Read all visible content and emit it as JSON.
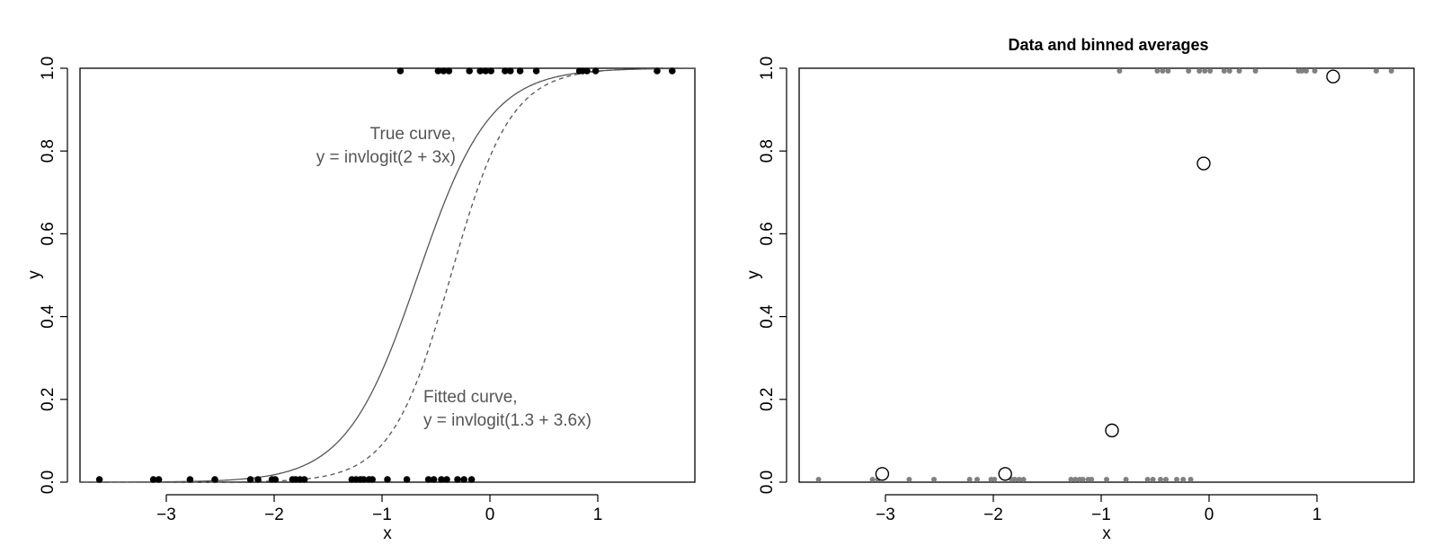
{
  "chart_data": [
    {
      "type": "scatter",
      "title": "",
      "xlabel": "x",
      "ylabel": "y",
      "xlim": [
        -3.8,
        1.9
      ],
      "ylim": [
        0,
        1
      ],
      "xticks": [
        -3,
        -2,
        -1,
        0,
        1
      ],
      "yticks": [
        0.0,
        0.2,
        0.4,
        0.6,
        0.8,
        1.0
      ],
      "xtick_labels": [
        "−3",
        "−2",
        "−1",
        "0",
        "1"
      ],
      "ytick_labels": [
        "0.0",
        "0.2",
        "0.4",
        "0.6",
        "0.8",
        "1.0"
      ],
      "grid": false,
      "points_color": "#000000",
      "points": {
        "x0": [
          -3.62,
          -3.12,
          -3.07,
          -2.78,
          -2.55,
          -2.22,
          -2.15,
          -2.02,
          -1.99,
          -1.83,
          -1.8,
          -1.76,
          -1.72,
          -1.28,
          -1.24,
          -1.2,
          -1.17,
          -1.12,
          -1.09,
          -0.95,
          -0.77,
          -0.57,
          -0.52,
          -0.45,
          -0.4,
          -0.3,
          -0.24,
          -0.17
        ],
        "x1": [
          -0.83,
          -0.48,
          -0.43,
          -0.38,
          -0.19,
          -0.09,
          -0.04,
          0.01,
          0.14,
          0.19,
          0.28,
          0.43,
          0.83,
          0.86,
          0.9,
          0.98,
          1.55,
          1.69
        ]
      },
      "curves": [
        {
          "label_lines": [
            "True curve,",
            "y = invlogit(2 + 3x)"
          ],
          "a": 2,
          "b": 3,
          "dash": "solid"
        },
        {
          "label_lines": [
            "Fitted curve,",
            "y = invlogit(1.3 + 3.6x)"
          ],
          "a": 1.3,
          "b": 3.6,
          "dash": "dashed"
        }
      ],
      "curve_color": "#555555",
      "annotation_color": "#555555"
    },
    {
      "type": "scatter",
      "title": "Data and binned averages",
      "xlabel": "x",
      "ylabel": "y",
      "xlim": [
        -3.8,
        1.9
      ],
      "ylim": [
        0,
        1
      ],
      "xticks": [
        -3,
        -2,
        -1,
        0,
        1
      ],
      "yticks": [
        0.0,
        0.2,
        0.4,
        0.6,
        0.8,
        1.0
      ],
      "xtick_labels": [
        "−3",
        "−2",
        "−1",
        "0",
        "1"
      ],
      "ytick_labels": [
        "0.0",
        "0.2",
        "0.4",
        "0.6",
        "0.8",
        "1.0"
      ],
      "grid": false,
      "points_color": "#808080",
      "points": {
        "x0": [
          -3.62,
          -3.12,
          -3.07,
          -2.78,
          -2.55,
          -2.22,
          -2.15,
          -2.02,
          -1.99,
          -1.83,
          -1.8,
          -1.76,
          -1.72,
          -1.28,
          -1.24,
          -1.2,
          -1.17,
          -1.12,
          -1.09,
          -0.95,
          -0.77,
          -0.57,
          -0.52,
          -0.45,
          -0.4,
          -0.3,
          -0.24,
          -0.17
        ],
        "x1": [
          -0.83,
          -0.48,
          -0.43,
          -0.38,
          -0.19,
          -0.09,
          -0.04,
          0.01,
          0.14,
          0.19,
          0.28,
          0.43,
          0.83,
          0.86,
          0.9,
          0.98,
          1.55,
          1.69
        ]
      },
      "binned_averages": [
        {
          "x": -3.03,
          "y": 0.02
        },
        {
          "x": -1.89,
          "y": 0.02
        },
        {
          "x": -0.9,
          "y": 0.125
        },
        {
          "x": -0.05,
          "y": 0.77
        },
        {
          "x": 1.15,
          "y": 0.98
        }
      ]
    }
  ]
}
